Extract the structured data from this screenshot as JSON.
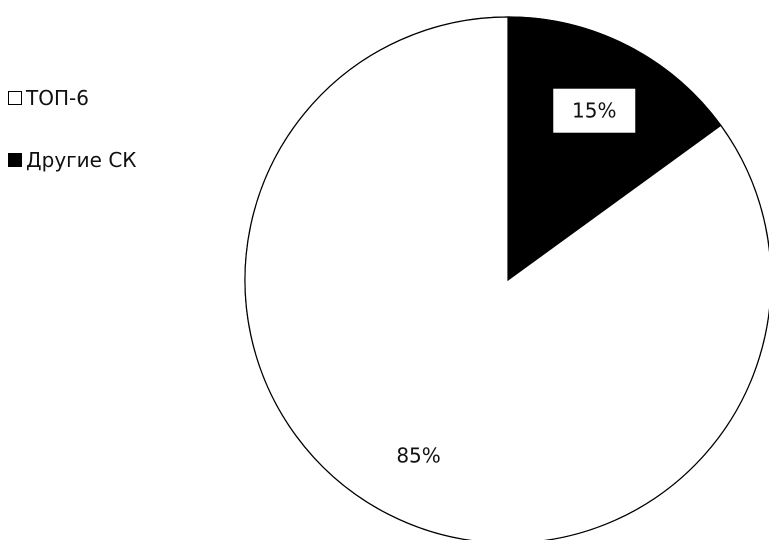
{
  "chart_data": {
    "type": "pie",
    "start_angle_deg": 0,
    "direction": "clockwise",
    "slices": [
      {
        "label": "Другие СК",
        "value": 15,
        "display": "15%",
        "fill": "#000000"
      },
      {
        "label": "ТОП-6",
        "value": 85,
        "display": "85%",
        "fill": "#ffffff"
      }
    ],
    "legend": {
      "placement": "left",
      "items": [
        {
          "label": "ТОП-6",
          "fill": "#ffffff"
        },
        {
          "label": "Другие СК",
          "fill": "#000000"
        }
      ]
    },
    "colors": {
      "outline": "#000000",
      "label_text": "#111111",
      "label_box": "#ffffff"
    }
  }
}
